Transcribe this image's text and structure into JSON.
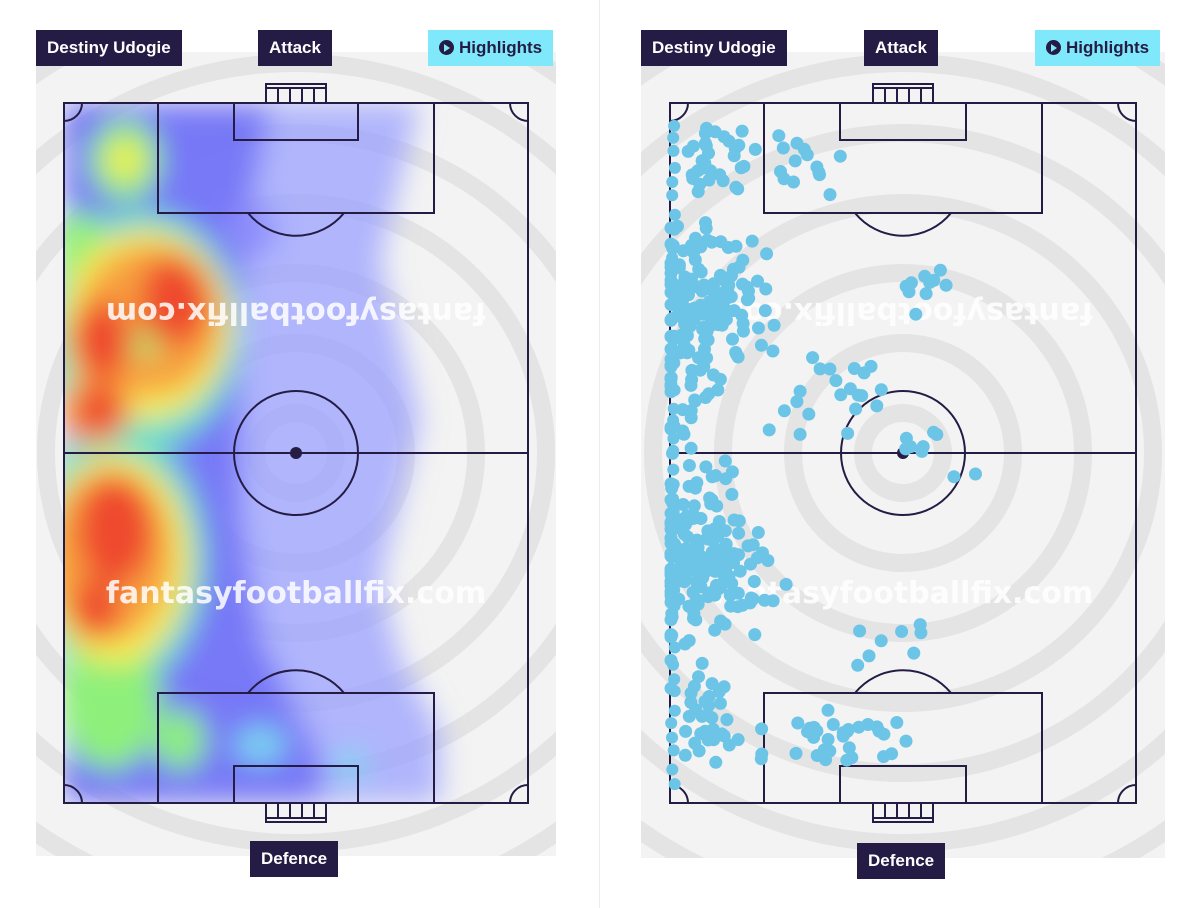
{
  "left_panel": {
    "player_name": "Destiny Udogie",
    "attack_label": "Attack",
    "defence_label": "Defence",
    "highlights_label": "Highlights",
    "watermark_top": "fantasyfootballfix.com",
    "watermark_bottom": "fantasyfootballfix.com",
    "play_icon": "play-icon"
  },
  "right_panel": {
    "player_name": "Destiny Udogie",
    "attack_label": "Attack",
    "defence_label": "Defence",
    "highlights_label": "Highlights",
    "watermark_top": "fantasyfootballfix.com",
    "watermark_bottom": "fantasyfootballfix.com",
    "play_icon": "play-icon"
  },
  "colors": {
    "pitch_line": "#241c45",
    "tag_background": "#241c45",
    "highlights_background": "#7fe9fb",
    "touch_dot": "#6cc4e6",
    "background_rings": "#e3e3e3"
  }
}
